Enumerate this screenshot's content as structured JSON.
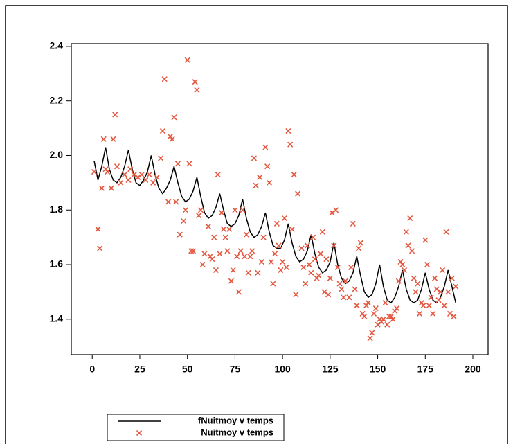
{
  "chart_data": {
    "type": "scatter-line",
    "xlim": [
      -11,
      208
    ],
    "ylim": [
      1.27,
      2.41
    ],
    "xticks": [
      0,
      25,
      50,
      75,
      100,
      125,
      150,
      175,
      200
    ],
    "yticks": [
      1.4,
      1.6,
      1.8,
      {
        "value": 2,
        "label": "2.0"
      },
      2.2,
      2.4
    ],
    "series": [
      {
        "name": "fNuitmoy v temps",
        "color": "#000000",
        "kind": "line",
        "x": [
          1,
          3,
          5,
          7,
          9,
          11,
          13,
          15,
          17,
          19,
          21,
          23,
          25,
          27,
          29,
          31,
          33,
          35,
          37,
          39,
          41,
          43,
          45,
          47,
          49,
          51,
          53,
          55,
          57,
          59,
          61,
          63,
          65,
          67,
          69,
          71,
          73,
          75,
          77,
          79,
          81,
          83,
          85,
          87,
          89,
          91,
          93,
          95,
          97,
          99,
          101,
          103,
          105,
          107,
          109,
          111,
          113,
          115,
          117,
          119,
          121,
          123,
          125,
          127,
          129,
          131,
          133,
          135,
          137,
          139,
          141,
          143,
          145,
          147,
          149,
          151,
          153,
          155,
          157,
          159,
          161,
          163,
          165,
          167,
          169,
          171,
          173,
          175,
          177,
          179,
          181,
          183,
          185,
          187,
          189,
          191
        ],
        "values": [
          1.98,
          1.91,
          1.96,
          2.03,
          1.95,
          1.91,
          1.9,
          1.92,
          1.96,
          2.02,
          1.95,
          1.9,
          1.89,
          1.91,
          1.94,
          2.0,
          1.93,
          1.88,
          1.86,
          1.88,
          1.91,
          1.96,
          1.9,
          1.85,
          1.83,
          1.84,
          1.87,
          1.92,
          1.85,
          1.79,
          1.77,
          1.78,
          1.81,
          1.86,
          1.8,
          1.75,
          1.74,
          1.75,
          1.78,
          1.84,
          1.77,
          1.72,
          1.7,
          1.71,
          1.74,
          1.79,
          1.72,
          1.67,
          1.66,
          1.66,
          1.69,
          1.75,
          1.68,
          1.63,
          1.61,
          1.62,
          1.65,
          1.71,
          1.64,
          1.59,
          1.57,
          1.58,
          1.61,
          1.68,
          1.6,
          1.55,
          1.53,
          1.54,
          1.57,
          1.63,
          1.56,
          1.5,
          1.48,
          1.49,
          1.53,
          1.6,
          1.52,
          1.47,
          1.46,
          1.48,
          1.52,
          1.58,
          1.51,
          1.47,
          1.46,
          1.47,
          1.51,
          1.57,
          1.51,
          1.47,
          1.46,
          1.48,
          1.52,
          1.58,
          1.52,
          1.46
        ]
      },
      {
        "name": "Nuitmoy v temps",
        "color": "#e4573f",
        "kind": "scatter",
        "x": [
          1,
          3,
          4,
          5,
          6,
          7,
          8,
          10,
          11,
          12,
          13,
          15,
          17,
          19,
          20,
          22,
          24,
          26,
          28,
          30,
          32,
          34,
          36,
          37,
          38,
          40,
          41,
          42,
          43,
          44,
          45,
          46,
          48,
          49,
          50,
          51,
          52,
          53,
          54,
          55,
          56,
          57,
          58,
          59,
          61,
          62,
          63,
          64,
          65,
          66,
          67,
          68,
          69,
          70,
          71,
          72,
          73,
          74,
          75,
          76,
          77,
          78,
          79,
          80,
          81,
          82,
          83,
          84,
          85,
          86,
          87,
          88,
          89,
          90,
          91,
          92,
          93,
          94,
          95,
          96,
          97,
          98,
          99,
          100,
          101,
          102,
          103,
          104,
          105,
          106,
          107,
          108,
          110,
          111,
          112,
          113,
          114,
          115,
          116,
          117,
          118,
          119,
          120,
          121,
          122,
          123,
          124,
          125,
          126,
          127,
          128,
          129,
          130,
          131,
          132,
          133,
          135,
          136,
          137,
          138,
          139,
          140,
          141,
          142,
          143,
          144,
          145,
          146,
          147,
          148,
          149,
          150,
          151,
          152,
          153,
          154,
          155,
          156,
          157,
          158,
          159,
          160,
          161,
          162,
          163,
          164,
          165,
          166,
          167,
          168,
          169,
          170,
          171,
          172,
          173,
          174,
          175,
          176,
          177,
          178,
          179,
          180,
          181,
          182,
          183,
          184,
          185,
          186,
          187,
          188,
          189,
          190,
          191
        ],
        "values": [
          1.94,
          1.73,
          1.66,
          1.88,
          2.06,
          1.95,
          1.94,
          1.88,
          2.06,
          2.15,
          1.96,
          1.9,
          1.93,
          1.91,
          1.95,
          1.93,
          1.92,
          1.93,
          1.91,
          1.93,
          1.9,
          1.92,
          1.99,
          2.09,
          2.28,
          1.83,
          2.07,
          2.06,
          2.14,
          1.83,
          1.97,
          1.71,
          1.76,
          1.8,
          2.35,
          1.97,
          1.65,
          1.65,
          2.27,
          2.24,
          1.78,
          1.8,
          1.6,
          1.64,
          1.74,
          1.63,
          1.62,
          1.7,
          1.58,
          1.93,
          1.64,
          1.79,
          1.73,
          1.7,
          1.65,
          1.73,
          1.54,
          1.58,
          1.8,
          1.63,
          1.5,
          1.65,
          1.8,
          1.63,
          1.71,
          1.57,
          1.63,
          1.65,
          1.99,
          1.89,
          1.57,
          1.92,
          1.61,
          1.7,
          2.03,
          1.96,
          1.9,
          1.61,
          1.53,
          1.64,
          1.75,
          1.67,
          1.58,
          1.61,
          1.77,
          1.59,
          2.09,
          2.04,
          1.73,
          1.93,
          1.49,
          1.86,
          1.66,
          1.59,
          1.53,
          1.67,
          1.6,
          1.57,
          1.7,
          1.62,
          1.55,
          1.56,
          1.64,
          1.72,
          1.5,
          1.62,
          1.49,
          1.55,
          1.79,
          1.67,
          1.8,
          1.59,
          1.53,
          1.51,
          1.48,
          1.54,
          1.48,
          1.59,
          1.75,
          1.51,
          1.45,
          1.66,
          1.68,
          1.42,
          1.41,
          1.45,
          1.46,
          1.33,
          1.35,
          1.42,
          1.44,
          1.38,
          1.4,
          1.39,
          1.4,
          1.46,
          1.38,
          1.41,
          1.41,
          1.4,
          1.43,
          1.44,
          1.54,
          1.61,
          1.6,
          1.58,
          1.72,
          1.67,
          1.77,
          1.65,
          1.55,
          1.5,
          1.53,
          1.42,
          1.46,
          1.45,
          1.69,
          1.6,
          1.45,
          1.48,
          1.42,
          1.55,
          1.51,
          1.47,
          1.5,
          1.58,
          1.45,
          1.72,
          1.5,
          1.42,
          1.55,
          1.41,
          1.52
        ]
      }
    ]
  }
}
